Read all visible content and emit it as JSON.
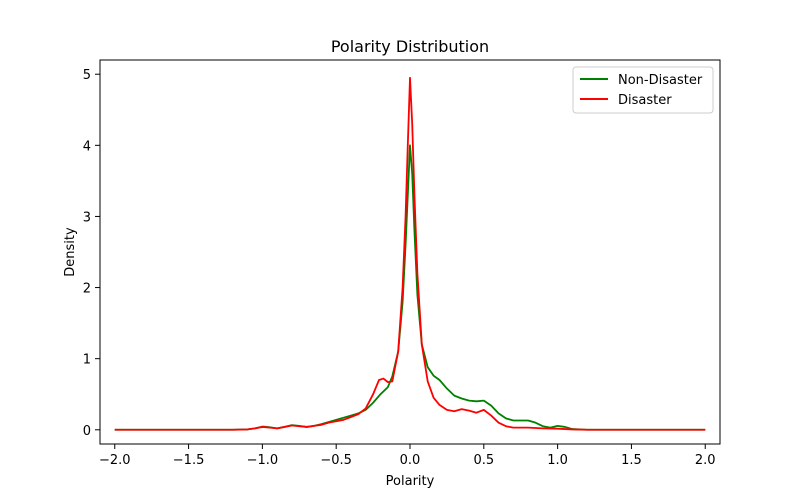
{
  "chart_data": {
    "type": "line",
    "title": "Polarity Distribution",
    "xlabel": "Polarity",
    "ylabel": "Density",
    "xlim": [
      -2.1,
      2.1
    ],
    "ylim": [
      -0.2,
      5.2
    ],
    "xticks": [
      -2.0,
      -1.5,
      -1.0,
      -0.5,
      0.0,
      0.5,
      1.0,
      1.5,
      2.0
    ],
    "xtick_labels": [
      "−2.0",
      "−1.5",
      "−1.0",
      "−0.5",
      "0.0",
      "0.5",
      "1.0",
      "1.5",
      "2.0"
    ],
    "yticks": [
      0,
      1,
      2,
      3,
      4,
      5
    ],
    "ytick_labels": [
      "0",
      "1",
      "2",
      "3",
      "4",
      "5"
    ],
    "grid": false,
    "legend_position": "top-right",
    "series": [
      {
        "name": "Non-Disaster",
        "color": "#008000",
        "points": [
          [
            -2.0,
            0.0
          ],
          [
            -1.2,
            0.0
          ],
          [
            -1.1,
            0.005
          ],
          [
            -1.05,
            0.02
          ],
          [
            -1.0,
            0.045
          ],
          [
            -0.95,
            0.035
          ],
          [
            -0.9,
            0.02
          ],
          [
            -0.85,
            0.04
          ],
          [
            -0.8,
            0.065
          ],
          [
            -0.75,
            0.055
          ],
          [
            -0.7,
            0.04
          ],
          [
            -0.65,
            0.055
          ],
          [
            -0.6,
            0.08
          ],
          [
            -0.55,
            0.11
          ],
          [
            -0.5,
            0.14
          ],
          [
            -0.45,
            0.17
          ],
          [
            -0.4,
            0.2
          ],
          [
            -0.35,
            0.23
          ],
          [
            -0.3,
            0.28
          ],
          [
            -0.25,
            0.38
          ],
          [
            -0.2,
            0.5
          ],
          [
            -0.15,
            0.6
          ],
          [
            -0.12,
            0.75
          ],
          [
            -0.08,
            1.1
          ],
          [
            -0.05,
            1.8
          ],
          [
            -0.03,
            2.6
          ],
          [
            -0.015,
            3.3
          ],
          [
            0.0,
            4.0
          ],
          [
            0.015,
            3.6
          ],
          [
            0.03,
            2.8
          ],
          [
            0.05,
            1.9
          ],
          [
            0.08,
            1.2
          ],
          [
            0.12,
            0.88
          ],
          [
            0.16,
            0.76
          ],
          [
            0.2,
            0.7
          ],
          [
            0.25,
            0.58
          ],
          [
            0.3,
            0.48
          ],
          [
            0.35,
            0.44
          ],
          [
            0.4,
            0.41
          ],
          [
            0.45,
            0.4
          ],
          [
            0.5,
            0.41
          ],
          [
            0.55,
            0.34
          ],
          [
            0.6,
            0.23
          ],
          [
            0.65,
            0.16
          ],
          [
            0.7,
            0.13
          ],
          [
            0.75,
            0.13
          ],
          [
            0.8,
            0.13
          ],
          [
            0.85,
            0.1
          ],
          [
            0.9,
            0.05
          ],
          [
            0.95,
            0.03
          ],
          [
            1.0,
            0.055
          ],
          [
            1.05,
            0.04
          ],
          [
            1.1,
            0.01
          ],
          [
            1.2,
            0.0
          ],
          [
            2.0,
            0.0
          ]
        ]
      },
      {
        "name": "Disaster",
        "color": "#ff0000",
        "points": [
          [
            -2.0,
            0.0
          ],
          [
            -1.2,
            0.0
          ],
          [
            -1.1,
            0.005
          ],
          [
            -1.05,
            0.02
          ],
          [
            -1.0,
            0.04
          ],
          [
            -0.95,
            0.03
          ],
          [
            -0.9,
            0.02
          ],
          [
            -0.85,
            0.04
          ],
          [
            -0.8,
            0.06
          ],
          [
            -0.75,
            0.05
          ],
          [
            -0.7,
            0.04
          ],
          [
            -0.65,
            0.055
          ],
          [
            -0.6,
            0.07
          ],
          [
            -0.55,
            0.1
          ],
          [
            -0.5,
            0.12
          ],
          [
            -0.45,
            0.14
          ],
          [
            -0.4,
            0.18
          ],
          [
            -0.35,
            0.22
          ],
          [
            -0.3,
            0.3
          ],
          [
            -0.25,
            0.5
          ],
          [
            -0.21,
            0.7
          ],
          [
            -0.18,
            0.72
          ],
          [
            -0.15,
            0.67
          ],
          [
            -0.12,
            0.68
          ],
          [
            -0.08,
            1.1
          ],
          [
            -0.05,
            2.0
          ],
          [
            -0.03,
            3.0
          ],
          [
            -0.015,
            4.0
          ],
          [
            0.0,
            4.95
          ],
          [
            0.015,
            4.3
          ],
          [
            0.03,
            3.3
          ],
          [
            0.05,
            2.2
          ],
          [
            0.08,
            1.2
          ],
          [
            0.12,
            0.68
          ],
          [
            0.16,
            0.45
          ],
          [
            0.2,
            0.35
          ],
          [
            0.25,
            0.28
          ],
          [
            0.3,
            0.26
          ],
          [
            0.35,
            0.29
          ],
          [
            0.4,
            0.27
          ],
          [
            0.45,
            0.24
          ],
          [
            0.5,
            0.28
          ],
          [
            0.55,
            0.2
          ],
          [
            0.6,
            0.1
          ],
          [
            0.65,
            0.05
          ],
          [
            0.7,
            0.03
          ],
          [
            0.75,
            0.03
          ],
          [
            0.8,
            0.03
          ],
          [
            0.85,
            0.025
          ],
          [
            0.9,
            0.02
          ],
          [
            1.0,
            0.015
          ],
          [
            1.1,
            0.005
          ],
          [
            1.2,
            0.0
          ],
          [
            2.0,
            0.0
          ]
        ]
      }
    ]
  }
}
